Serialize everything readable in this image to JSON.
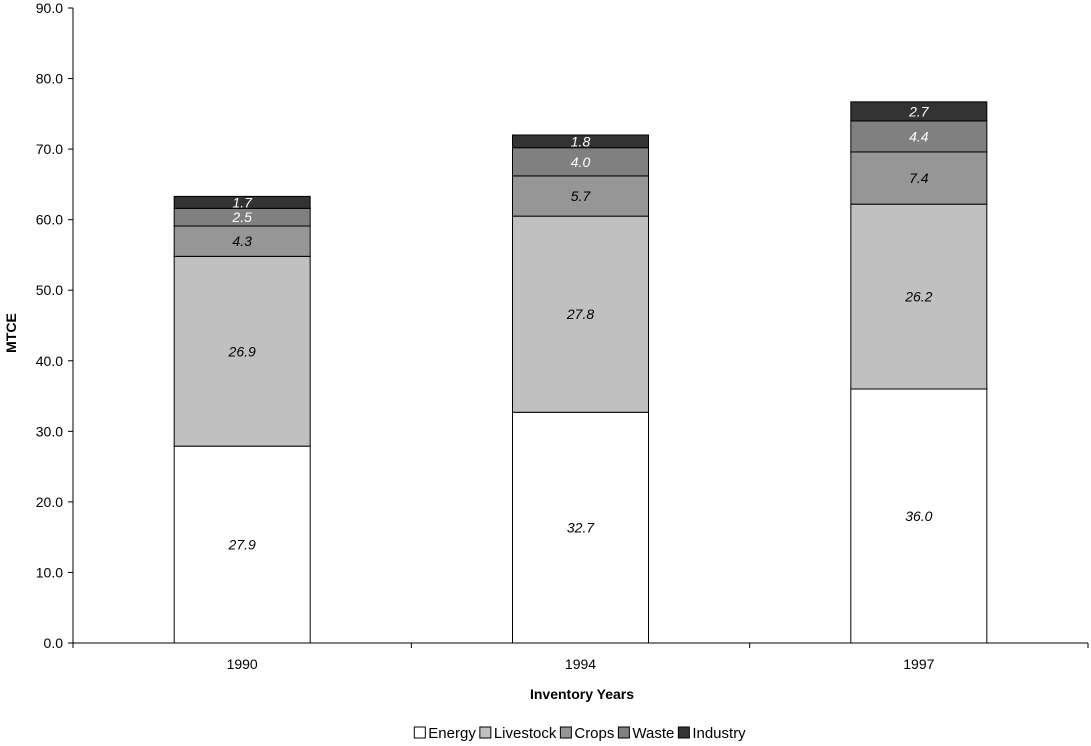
{
  "chart_data": {
    "type": "bar",
    "stacked": true,
    "title": "",
    "xlabel": "Inventory Years",
    "ylabel": "MTCE",
    "ylim": [
      0,
      90
    ],
    "y_tick_step": 10,
    "y_tick_format": "one-decimal",
    "categories": [
      "1990",
      "1994",
      "1997"
    ],
    "series": [
      {
        "name": "Energy",
        "values": [
          27.9,
          32.7,
          36.0
        ],
        "color": "#ffffff",
        "label_color": "#000000"
      },
      {
        "name": "Livestock",
        "values": [
          26.9,
          27.8,
          26.2
        ],
        "color": "#c0c0c0",
        "label_color": "#000000"
      },
      {
        "name": "Crops",
        "values": [
          4.3,
          5.7,
          7.4
        ],
        "color": "#969696",
        "label_color": "#000000"
      },
      {
        "name": "Waste",
        "values": [
          2.5,
          4.0,
          4.4
        ],
        "color": "#808080",
        "label_color": "#ffffff"
      },
      {
        "name": "Industry",
        "values": [
          1.7,
          1.8,
          2.7
        ],
        "color": "#333333",
        "label_color": "#ffffff"
      }
    ],
    "grid": false,
    "legend_position": "bottom",
    "bar_border_color": "#000000"
  }
}
